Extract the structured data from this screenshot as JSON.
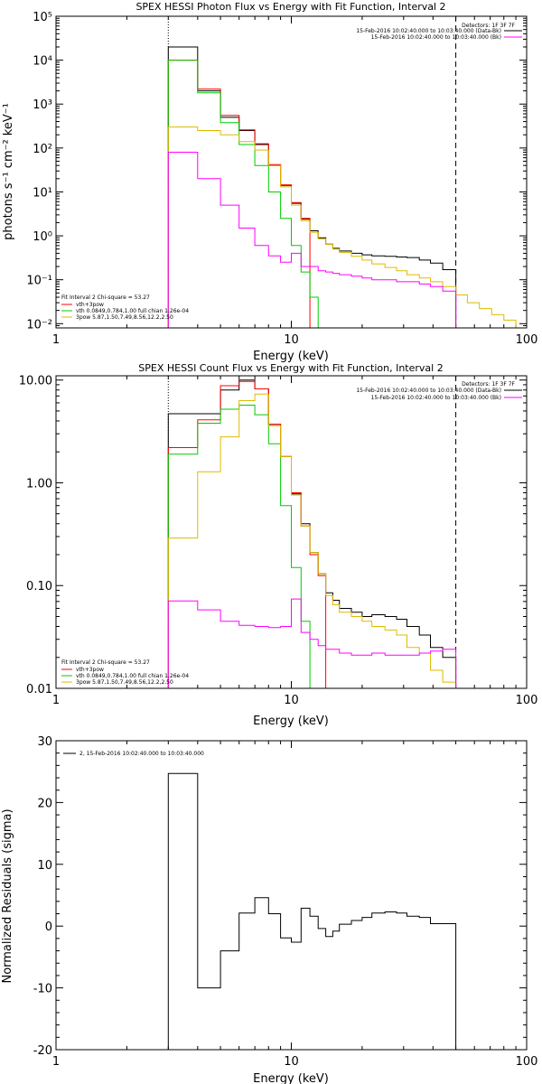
{
  "chart_data": [
    {
      "type": "line",
      "step": true,
      "title": "SPEX HESSI Photon Flux vs Energy with Fit Function, Interval 2",
      "xlabel": "Energy (keV)",
      "ylabel": "photons s⁻¹ cm⁻² keV⁻¹",
      "xscale": "log",
      "yscale": "log",
      "xlim": [
        1,
        100
      ],
      "ylim": [
        0.008,
        100000
      ],
      "xticks": [
        1,
        10,
        100
      ],
      "xtick_labels": [
        "1",
        "10",
        "100"
      ],
      "yticks": [
        0.01,
        0.1,
        1,
        10,
        100,
        1000,
        10000,
        100000
      ],
      "ytick_labels": [
        "10⁻²",
        "10⁻¹",
        "10⁰",
        "10¹",
        "10²",
        "10³",
        "10⁴",
        "10⁵"
      ],
      "vlines": [
        {
          "x": 3,
          "style": "dotted"
        },
        {
          "x": 50,
          "style": "dashed"
        }
      ],
      "legend_top": {
        "header": "Detectors: 1F 3F 7F",
        "entries": [
          {
            "text": "15-Feb-2016 10:02:40.000 to 10:03:40.000 (Data-Bk)",
            "color": "#000000"
          },
          {
            "text": "15-Feb-2016 10:02:40.000 to 10:03:40.000 (Bk)",
            "color": "#ff00ff"
          }
        ]
      },
      "legend_bottom": {
        "header": "Fit Interval 2   Chi-square = 53.27",
        "entries": [
          {
            "text": "vth+3pow",
            "color": "#ff0000"
          },
          {
            "text": "vth 0.0849,0.784,1.00  full chian 1.26e-04",
            "color": "#00cc00"
          },
          {
            "text": "3pow 5.87,1.50,7.49,8.56,12.2,2.50",
            "color": "#ddbb00"
          }
        ]
      },
      "edges": [
        3,
        4,
        5,
        6,
        7,
        8,
        9,
        10,
        11,
        12,
        13,
        14,
        15,
        16,
        18,
        20,
        22,
        25,
        28,
        31,
        35,
        39,
        44,
        50,
        56,
        63,
        71,
        80,
        90
      ],
      "series": [
        {
          "key": "data",
          "color": "#000000",
          "values": [
            20000,
            2000,
            500,
            250,
            120,
            40,
            14,
            5.5,
            2.4,
            1.3,
            0.9,
            0.65,
            0.52,
            0.45,
            0.4,
            0.37,
            0.35,
            0.34,
            0.33,
            0.32,
            0.28,
            0.24,
            0.17
          ]
        },
        {
          "key": "model",
          "color": "#ff0000",
          "values": [
            10000,
            2200,
            550,
            260,
            125,
            42,
            14.5,
            5.7,
            2.5
          ]
        },
        {
          "key": "thermal",
          "color": "#00cc00",
          "values": [
            10000,
            1800,
            380,
            120,
            40,
            10,
            2.5,
            0.6,
            0.15,
            0.04,
            0.008
          ]
        },
        {
          "key": "powerlaw",
          "color": "#ddbb00",
          "values": [
            300,
            250,
            200,
            140,
            90,
            40,
            13,
            5,
            2.2,
            1.2,
            0.85,
            0.65,
            0.5,
            0.42,
            0.34,
            0.28,
            0.23,
            0.19,
            0.16,
            0.13,
            0.11,
            0.09,
            0.07,
            0.045,
            0.03,
            0.022,
            0.016,
            0.012
          ]
        },
        {
          "key": "background",
          "color": "#ff00ff",
          "values": [
            80,
            20,
            5,
            1.5,
            0.6,
            0.35,
            0.25,
            0.4,
            0.2,
            0.2,
            0.16,
            0.15,
            0.14,
            0.13,
            0.12,
            0.11,
            0.1,
            0.1,
            0.09,
            0.09,
            0.08,
            0.07,
            0.055
          ]
        }
      ]
    },
    {
      "type": "line",
      "step": true,
      "title": "SPEX HESSI Count Flux vs Energy with Fit Function, Interval 2",
      "xlabel": "Energy (keV)",
      "ylabel": "",
      "xscale": "log",
      "yscale": "log",
      "xlim": [
        1,
        100
      ],
      "ylim": [
        0.01,
        11
      ],
      "xticks": [
        1,
        10,
        100
      ],
      "xtick_labels": [
        "1",
        "10",
        "100"
      ],
      "yticks": [
        0.01,
        0.1,
        1,
        10
      ],
      "ytick_labels": [
        "0.01",
        "0.10",
        "1.00",
        "10.00"
      ],
      "vlines": [
        {
          "x": 3,
          "style": "dotted"
        },
        {
          "x": 50,
          "style": "dashed"
        }
      ],
      "legend_top": {
        "header": "Detectors: 1F 3F 7F",
        "entries": [
          {
            "text": "15-Feb-2016 10:02:40.000 to 10:03:40.000 (Data-Bk)",
            "color": "#000000"
          },
          {
            "text": "15-Feb-2016 10:02:40.000 to 10:03:40.000 (Bk)",
            "color": "#ff00ff"
          }
        ]
      },
      "legend_bottom": {
        "header": "Fit Interval 2   Chi-square = 53.27",
        "entries": [
          {
            "text": "vth+3pow",
            "color": "#ff0000"
          },
          {
            "text": "vth 0.0849,0.784,1.00  full chian 1.26e-04",
            "color": "#00cc00"
          },
          {
            "text": "3pow 5.87,1.50,7.49,8.56,12.2,2.50",
            "color": "#ddbb00"
          }
        ]
      },
      "edges": [
        3,
        4,
        5,
        6,
        7,
        8,
        9,
        10,
        11,
        12,
        13,
        14,
        15,
        16,
        18,
        20,
        22,
        25,
        28,
        31,
        35,
        39,
        44,
        50
      ],
      "series": [
        {
          "key": "data",
          "color": "#000000",
          "values": [
            4.7,
            4.7,
            8.0,
            10.0,
            8.2,
            3.7,
            1.8,
            0.78,
            0.4,
            0.21,
            0.13,
            0.085,
            0.072,
            0.06,
            0.055,
            0.05,
            0.052,
            0.05,
            0.047,
            0.04,
            0.033,
            0.025,
            0.02
          ]
        },
        {
          "key": "model",
          "color": "#ff0000",
          "values": [
            2.2,
            4.1,
            8.8,
            9.7,
            8.2,
            3.7,
            1.8,
            0.8,
            0.38,
            0.2,
            0.125
          ]
        },
        {
          "key": "thermal",
          "color": "#00cc00",
          "values": [
            1.9,
            3.8,
            5.2,
            5.7,
            4.6,
            2.4,
            0.6,
            0.15,
            0.045,
            0.01
          ]
        },
        {
          "key": "powerlaw",
          "color": "#ddbb00",
          "values": [
            0.29,
            1.28,
            2.8,
            6.3,
            7.3,
            3.6,
            1.8,
            0.76,
            0.38,
            0.21,
            0.13,
            0.08,
            0.065,
            0.055,
            0.05,
            0.045,
            0.04,
            0.037,
            0.033,
            0.025,
            0.022,
            0.015,
            0.0115
          ]
        },
        {
          "key": "background",
          "color": "#ff00ff",
          "values": [
            0.071,
            0.058,
            0.045,
            0.041,
            0.04,
            0.039,
            0.04,
            0.074,
            0.035,
            0.03,
            0.026,
            0.024,
            0.024,
            0.022,
            0.021,
            0.021,
            0.022,
            0.021,
            0.021,
            0.021,
            0.022,
            0.023,
            0.024
          ]
        }
      ]
    },
    {
      "type": "line",
      "step": true,
      "title": "",
      "xlabel": "Energy (keV)",
      "ylabel": "Normalized Residuals (sigma)",
      "xscale": "log",
      "yscale": "linear",
      "xlim": [
        1,
        100
      ],
      "ylim": [
        -20,
        30
      ],
      "xticks": [
        1,
        10,
        100
      ],
      "xtick_labels": [
        "1",
        "10",
        "100"
      ],
      "yticks": [
        -20,
        -10,
        0,
        10,
        20,
        30
      ],
      "ytick_labels": [
        "-20",
        "-10",
        "0",
        "10",
        "20",
        "30"
      ],
      "legend_top": {
        "header": "",
        "entries": [
          {
            "text": "2, 15-Feb-2016 10:02:40.000 to 10:03:40.000",
            "color": "#000000"
          }
        ]
      },
      "edges": [
        3,
        4,
        5,
        6,
        7,
        8,
        9,
        10,
        11,
        12,
        13,
        14,
        15,
        16,
        18,
        20,
        22,
        25,
        28,
        31,
        35,
        39,
        44,
        50
      ],
      "baseline": -20,
      "series": [
        {
          "key": "residuals",
          "color": "#000000",
          "values": [
            24.7,
            -10.0,
            -4.0,
            2.1,
            4.6,
            2.0,
            -1.9,
            -2.6,
            2.9,
            1.6,
            -0.4,
            -1.7,
            -0.8,
            0.3,
            0.9,
            1.4,
            2.1,
            2.3,
            2.1,
            1.6,
            1.4,
            0.4,
            0.4
          ]
        }
      ]
    }
  ]
}
